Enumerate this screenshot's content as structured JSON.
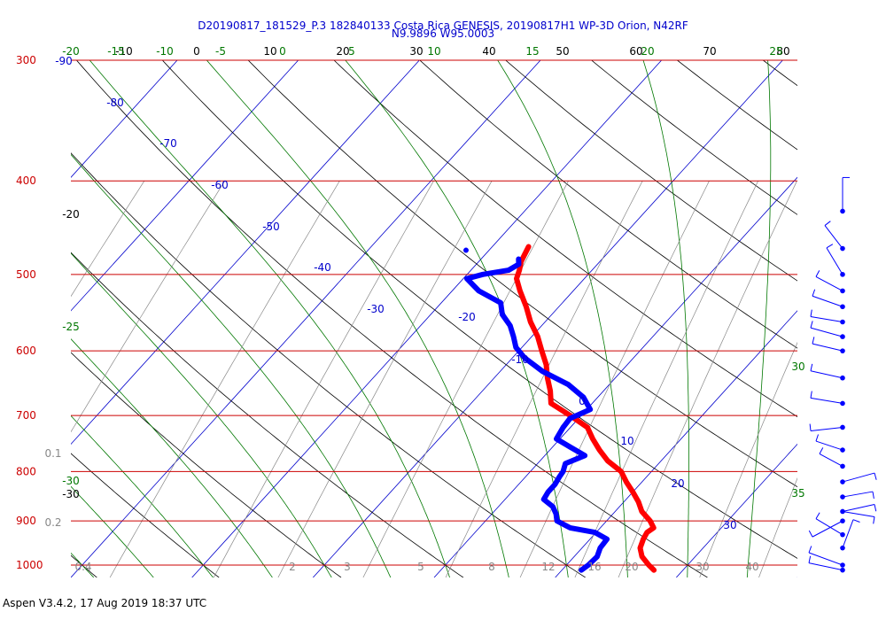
{
  "chart_data": {
    "type": "skew-t",
    "title": "D20190817_181529_P.3 182840133 Costa Rica GENESIS, 20190817H1 WP-3D Orion, N42RF",
    "subtitle": "N9.9896 W95.0003",
    "footer": "Aspen V3.4.2, 17 Aug 2019  18:37 UTC",
    "pressure_range": [
      1030,
      300
    ],
    "temp_range_at_bottom": [
      -20,
      40
    ],
    "isobars": [
      300,
      400,
      500,
      600,
      700,
      800,
      900,
      1000
    ],
    "pressure_labels": [
      "300",
      "400",
      "500",
      "600",
      "700",
      "800",
      "900",
      "1000"
    ],
    "isotherm_labels": [
      "-90",
      "-80",
      "-70",
      "-60",
      "-50",
      "-40",
      "-30",
      "-20",
      "-10",
      "0",
      "10",
      "20",
      "30"
    ],
    "top_black_labels": [
      "-10",
      "0",
      "10",
      "20",
      "30",
      "40",
      "50",
      "60",
      "70",
      "80"
    ],
    "top_green_labels": [
      "-20",
      "-15",
      "-10",
      "-5",
      "0",
      "5",
      "10",
      "15",
      "20",
      "25"
    ],
    "left_black_labels": [
      "-20",
      "-30"
    ],
    "left_green_labels": [
      "-25",
      "-30"
    ],
    "right_green_labels": [
      "30",
      "35"
    ],
    "left_gray_labels": [
      "0.1",
      "0.2"
    ],
    "mixing_ratio_labels": [
      "0.4",
      "2",
      "3",
      "5",
      "8",
      "12",
      "16",
      "20",
      "30",
      "40"
    ],
    "temperature_profile": [
      {
        "p": 1012,
        "t": 27.6
      },
      {
        "p": 1000,
        "t": 26.8
      },
      {
        "p": 980,
        "t": 25.6
      },
      {
        "p": 960,
        "t": 24.8
      },
      {
        "p": 940,
        "t": 24.4
      },
      {
        "p": 925,
        "t": 24.2
      },
      {
        "p": 915,
        "t": 24.4
      },
      {
        "p": 900,
        "t": 23.6
      },
      {
        "p": 880,
        "t": 22.2
      },
      {
        "p": 860,
        "t": 21.2
      },
      {
        "p": 840,
        "t": 20.0
      },
      {
        "p": 820,
        "t": 18.7
      },
      {
        "p": 800,
        "t": 17.5
      },
      {
        "p": 780,
        "t": 15.6
      },
      {
        "p": 760,
        "t": 14.1
      },
      {
        "p": 740,
        "t": 12.7
      },
      {
        "p": 720,
        "t": 11.4
      },
      {
        "p": 700,
        "t": 9.1
      },
      {
        "p": 680,
        "t": 6.6
      },
      {
        "p": 660,
        "t": 5.6
      },
      {
        "p": 640,
        "t": 4.4
      },
      {
        "p": 620,
        "t": 3.3
      },
      {
        "p": 600,
        "t": 1.9
      },
      {
        "p": 580,
        "t": 0.5
      },
      {
        "p": 560,
        "t": -1.2
      },
      {
        "p": 540,
        "t": -2.7
      },
      {
        "p": 520,
        "t": -4.4
      },
      {
        "p": 505,
        "t": -5.6
      },
      {
        "p": 495,
        "t": -6.0
      },
      {
        "p": 485,
        "t": -6.5
      },
      {
        "p": 475,
        "t": -6.8
      },
      {
        "p": 468,
        "t": -7.0
      }
    ],
    "dewpoint_profile": [
      {
        "p": 1012,
        "t": 21.6
      },
      {
        "p": 1000,
        "t": 21.8
      },
      {
        "p": 980,
        "t": 21.9
      },
      {
        "p": 960,
        "t": 21.5
      },
      {
        "p": 940,
        "t": 21.4
      },
      {
        "p": 925,
        "t": 19.9
      },
      {
        "p": 915,
        "t": 17.5
      },
      {
        "p": 900,
        "t": 15.9
      },
      {
        "p": 885,
        "t": 15.3
      },
      {
        "p": 870,
        "t": 14.5
      },
      {
        "p": 855,
        "t": 13.2
      },
      {
        "p": 840,
        "t": 13.0
      },
      {
        "p": 825,
        "t": 13.0
      },
      {
        "p": 810,
        "t": 12.8
      },
      {
        "p": 800,
        "t": 12.7
      },
      {
        "p": 785,
        "t": 12.3
      },
      {
        "p": 770,
        "t": 13.3
      },
      {
        "p": 755,
        "t": 11.5
      },
      {
        "p": 740,
        "t": 9.7
      },
      {
        "p": 720,
        "t": 9.4
      },
      {
        "p": 705,
        "t": 9.3
      },
      {
        "p": 690,
        "t": 10.3
      },
      {
        "p": 670,
        "t": 8.8
      },
      {
        "p": 650,
        "t": 6.6
      },
      {
        "p": 630,
        "t": 3.5
      },
      {
        "p": 610,
        "t": 1.0
      },
      {
        "p": 595,
        "t": -0.5
      },
      {
        "p": 580,
        "t": -1.5
      },
      {
        "p": 565,
        "t": -2.6
      },
      {
        "p": 550,
        "t": -4.1
      },
      {
        "p": 535,
        "t": -5.1
      },
      {
        "p": 520,
        "t": -7.8
      },
      {
        "p": 505,
        "t": -9.7
      },
      {
        "p": 500,
        "t": -8.7
      },
      {
        "p": 495,
        "t": -6.9
      },
      {
        "p": 488,
        "t": -6.5
      },
      {
        "p": 482,
        "t": -6.9
      }
    ],
    "isolated_dewpoint": {
      "p": 472,
      "t": -11.9
    },
    "wind_barb_pressures": [
      1012,
      1000,
      960,
      930,
      900,
      880,
      850,
      820,
      790,
      760,
      720,
      680,
      640,
      600,
      580,
      560,
      540,
      520,
      500,
      470,
      430
    ],
    "colors": {
      "temperature": "#ff0000",
      "dewpoint": "#0000ff",
      "isobar": "#cc0000",
      "isotherm": "#0000cc",
      "dry_adiabat": "#000000",
      "moist_adiabat": "#007700",
      "mixing_ratio": "#888888",
      "title": "#0000cc"
    }
  }
}
